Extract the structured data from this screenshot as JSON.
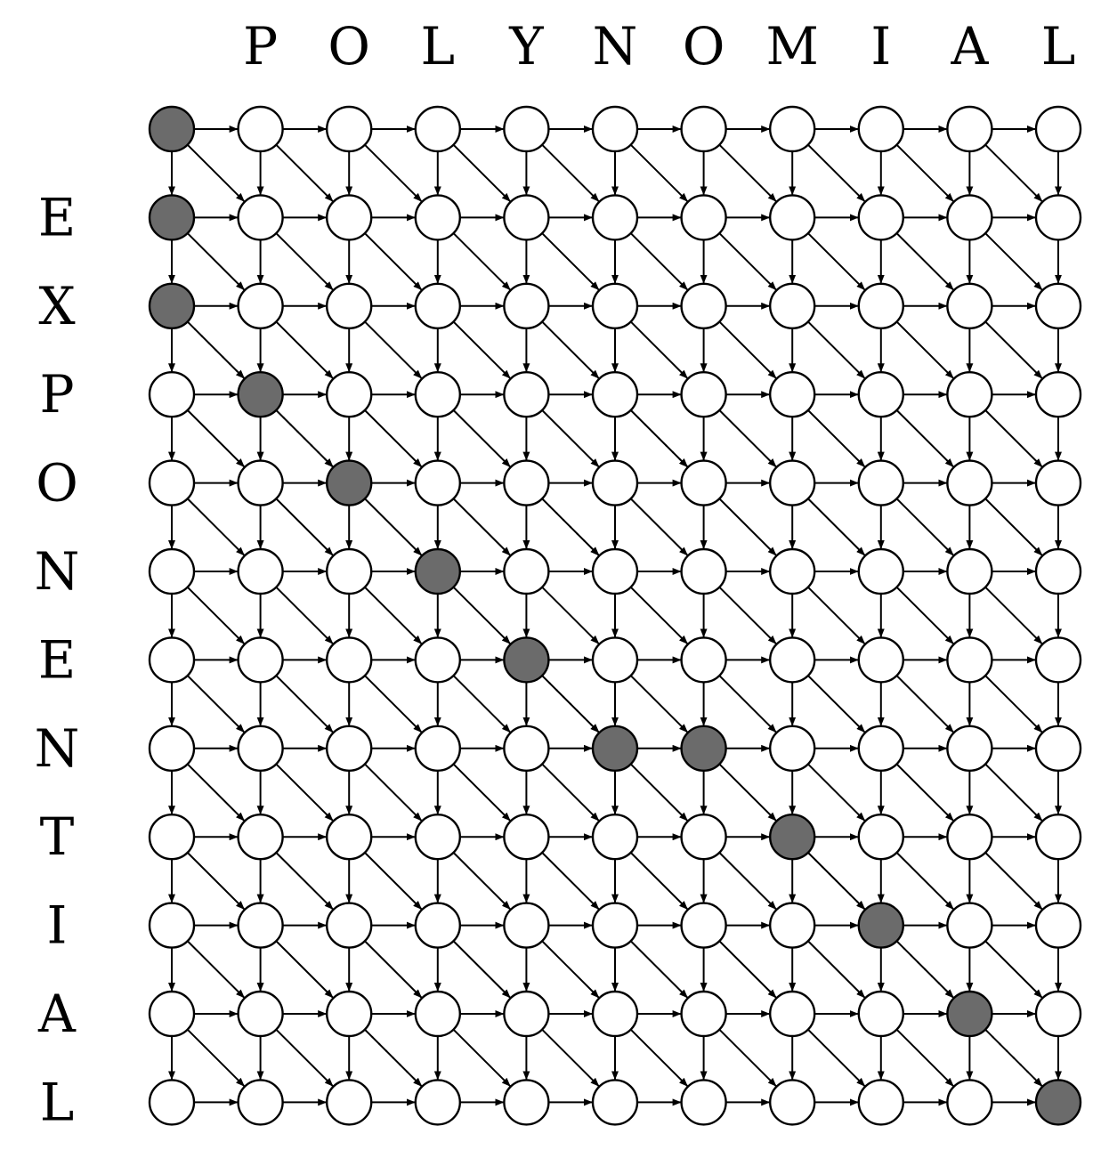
{
  "diagram": {
    "top_letters": [
      "P",
      "O",
      "L",
      "Y",
      "N",
      "O",
      "M",
      "I",
      "A",
      "L"
    ],
    "left_letters": [
      "E",
      "X",
      "P",
      "O",
      "N",
      "E",
      "N",
      "T",
      "I",
      "A",
      "L"
    ],
    "grid_rows": 12,
    "grid_cols": 11,
    "highlighted_nodes": [
      [
        0,
        0
      ],
      [
        1,
        0
      ],
      [
        2,
        0
      ],
      [
        3,
        1
      ],
      [
        4,
        2
      ],
      [
        5,
        3
      ],
      [
        6,
        4
      ],
      [
        7,
        5
      ],
      [
        7,
        6
      ],
      [
        8,
        7
      ],
      [
        9,
        8
      ],
      [
        10,
        9
      ],
      [
        11,
        10
      ]
    ],
    "dotted_edges": [
      [
        [
          2,
          0
        ],
        [
          3,
          1
        ]
      ],
      [
        [
          3,
          1
        ],
        [
          4,
          2
        ]
      ],
      [
        [
          4,
          4
        ],
        [
          5,
          5
        ]
      ],
      [
        [
          6,
          4
        ],
        [
          7,
          5
        ]
      ],
      [
        [
          8,
          7
        ],
        [
          9,
          8
        ]
      ],
      [
        [
          9,
          8
        ],
        [
          10,
          9
        ]
      ],
      [
        [
          10,
          9
        ],
        [
          11,
          10
        ]
      ],
      [
        [
          3,
          5
        ],
        [
          4,
          6
        ]
      ],
      [
        [
          10,
          2
        ],
        [
          11,
          3
        ]
      ]
    ],
    "colors": {
      "highlight_fill": "#6b6b6b",
      "node_fill": "#ffffff",
      "stroke": "#000000"
    }
  }
}
